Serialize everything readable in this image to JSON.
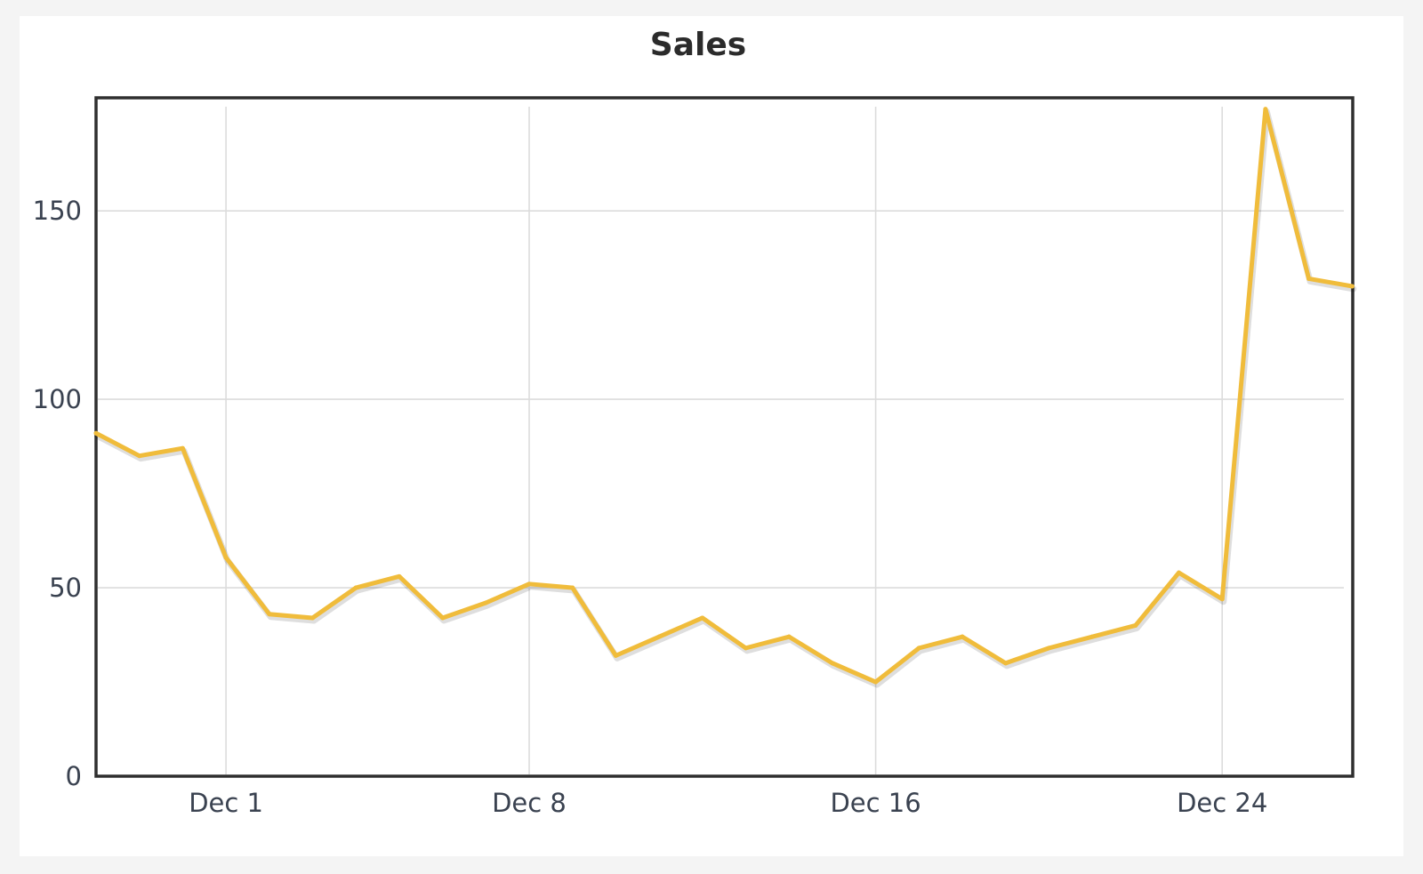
{
  "chart_data": {
    "type": "line",
    "title": "Sales",
    "xlabel": "",
    "ylabel": "",
    "x": [
      "Nov 28",
      "Nov 29",
      "Nov 30",
      "Dec 1",
      "Dec 2",
      "Dec 3",
      "Dec 4",
      "Dec 5",
      "Dec 6",
      "Dec 7",
      "Dec 8",
      "Dec 9",
      "Dec 10",
      "Dec 11",
      "Dec 12",
      "Dec 13",
      "Dec 14",
      "Dec 15",
      "Dec 16",
      "Dec 17",
      "Dec 18",
      "Dec 19",
      "Dec 20",
      "Dec 21",
      "Dec 22",
      "Dec 23",
      "Dec 24",
      "Dec 25",
      "Dec 26",
      "Dec 27"
    ],
    "x_tick_labels": [
      "Dec 1",
      "Dec 8",
      "Dec 16",
      "Dec 24"
    ],
    "series": [
      {
        "values": [
          91,
          85,
          87,
          58,
          43,
          42,
          50,
          53,
          42,
          46,
          51,
          50,
          32,
          37,
          42,
          34,
          37,
          30,
          25,
          34,
          37,
          30,
          34,
          37,
          40,
          54,
          47,
          177,
          132,
          130
        ],
        "color": "#f0bc3b"
      }
    ],
    "ylim": [
      0,
      180
    ],
    "y_ticks": [
      0,
      50,
      100,
      150
    ],
    "grid": true,
    "legend": "none"
  }
}
